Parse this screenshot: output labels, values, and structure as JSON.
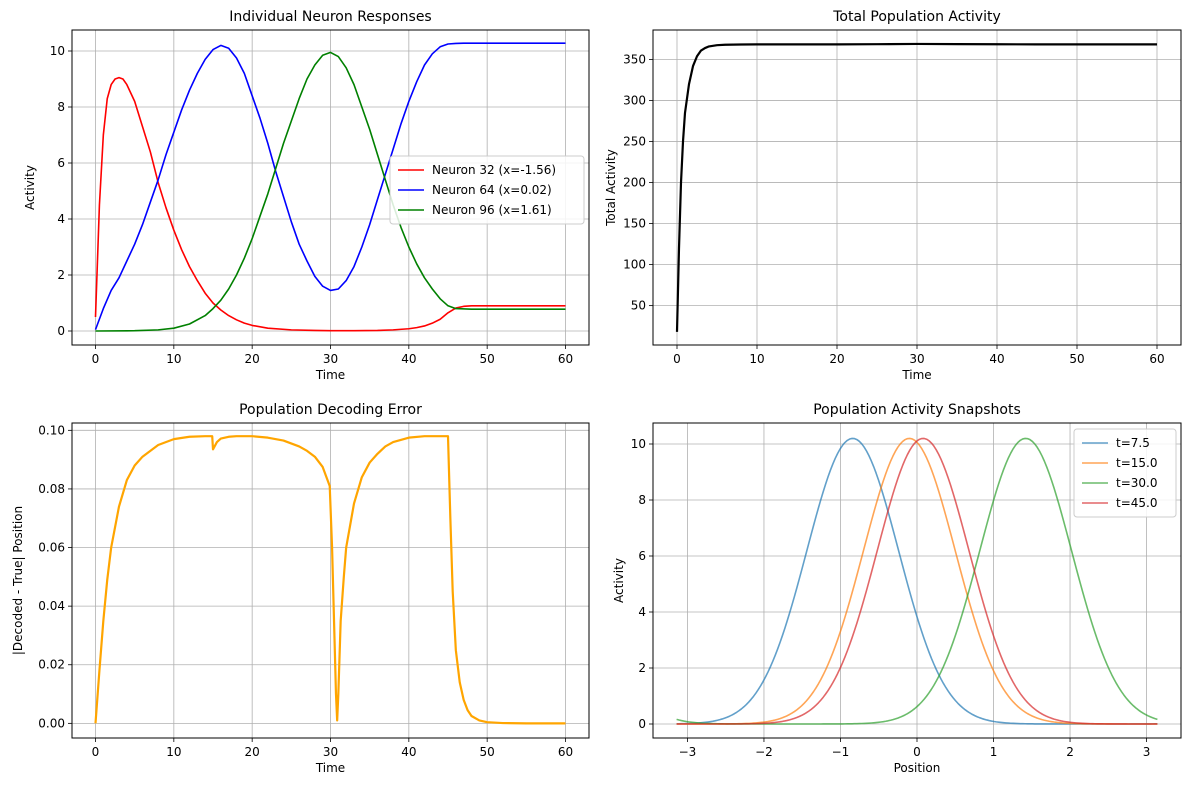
{
  "chart_data": [
    {
      "type": "line",
      "title": "Individual Neuron Responses",
      "xlabel": "Time",
      "ylabel": "Activity",
      "xlim": [
        -3,
        63
      ],
      "ylim": [
        -0.5,
        10.75
      ],
      "xticks": [
        0,
        10,
        20,
        30,
        40,
        50,
        60
      ],
      "yticks": [
        0,
        2,
        4,
        6,
        8,
        10
      ],
      "grid": true,
      "legend": "center-right",
      "series": [
        {
          "name": "Neuron 32 (x=-1.56)",
          "color": "#ff0000",
          "x": [
            0,
            0.5,
            1,
            1.5,
            2,
            2.5,
            3,
            3.5,
            4,
            5,
            6,
            7,
            8,
            9,
            10,
            11,
            12,
            13,
            14,
            15,
            16,
            17,
            18,
            19,
            20,
            22,
            25,
            28,
            30,
            33,
            36,
            38,
            40,
            41,
            42,
            43,
            44,
            45,
            46,
            47,
            48,
            50,
            55,
            60
          ],
          "y": [
            0.5,
            4.5,
            7.0,
            8.3,
            8.8,
            9.0,
            9.05,
            9.0,
            8.8,
            8.2,
            7.3,
            6.4,
            5.3,
            4.4,
            3.6,
            2.9,
            2.3,
            1.8,
            1.35,
            1.0,
            0.75,
            0.55,
            0.4,
            0.28,
            0.2,
            0.1,
            0.04,
            0.02,
            0.01,
            0.01,
            0.02,
            0.04,
            0.08,
            0.12,
            0.18,
            0.28,
            0.42,
            0.65,
            0.82,
            0.88,
            0.9,
            0.9,
            0.9,
            0.9
          ]
        },
        {
          "name": "Neuron 64 (x=0.02)",
          "color": "#0000ff",
          "x": [
            0,
            1,
            2,
            3,
            4,
            5,
            6,
            7,
            8,
            9,
            10,
            11,
            12,
            13,
            14,
            15,
            16,
            17,
            18,
            19,
            20,
            21,
            22,
            23,
            24,
            25,
            26,
            27,
            28,
            29,
            30,
            31,
            32,
            33,
            34,
            35,
            36,
            37,
            38,
            39,
            40,
            41,
            42,
            43,
            44,
            45,
            46,
            47,
            48,
            50,
            55,
            60
          ],
          "y": [
            0.05,
            0.8,
            1.45,
            1.9,
            2.5,
            3.1,
            3.8,
            4.6,
            5.4,
            6.3,
            7.1,
            7.9,
            8.6,
            9.2,
            9.7,
            10.05,
            10.2,
            10.1,
            9.75,
            9.2,
            8.4,
            7.6,
            6.7,
            5.7,
            4.8,
            3.9,
            3.1,
            2.5,
            1.95,
            1.6,
            1.45,
            1.5,
            1.8,
            2.3,
            3.0,
            3.8,
            4.7,
            5.6,
            6.5,
            7.4,
            8.2,
            8.9,
            9.5,
            9.9,
            10.15,
            10.25,
            10.27,
            10.28,
            10.28,
            10.28,
            10.28,
            10.28
          ]
        },
        {
          "name": "Neuron 96 (x=1.61)",
          "color": "#008000",
          "x": [
            0,
            5,
            8,
            10,
            12,
            14,
            15,
            16,
            17,
            18,
            19,
            20,
            21,
            22,
            23,
            24,
            25,
            26,
            27,
            28,
            29,
            30,
            31,
            32,
            33,
            34,
            35,
            36,
            37,
            38,
            39,
            40,
            41,
            42,
            43,
            44,
            45,
            46,
            48,
            50,
            55,
            60
          ],
          "y": [
            0,
            0.01,
            0.04,
            0.1,
            0.25,
            0.55,
            0.8,
            1.1,
            1.5,
            2.0,
            2.6,
            3.3,
            4.1,
            4.9,
            5.8,
            6.7,
            7.5,
            8.3,
            9.0,
            9.5,
            9.85,
            9.95,
            9.8,
            9.4,
            8.8,
            8.0,
            7.2,
            6.3,
            5.4,
            4.5,
            3.7,
            3.0,
            2.4,
            1.9,
            1.5,
            1.15,
            0.9,
            0.8,
            0.78,
            0.78,
            0.78,
            0.78
          ]
        }
      ]
    },
    {
      "type": "line",
      "title": "Total Population Activity",
      "xlabel": "Time",
      "ylabel": "Total Activity",
      "xlim": [
        -3,
        63
      ],
      "ylim": [
        2,
        386
      ],
      "xticks": [
        0,
        10,
        20,
        30,
        40,
        50,
        60
      ],
      "yticks": [
        50,
        100,
        150,
        200,
        250,
        300,
        350
      ],
      "grid": true,
      "series": [
        {
          "color": "#000000",
          "x": [
            0,
            0.25,
            0.5,
            0.75,
            1,
            1.5,
            2,
            2.5,
            3,
            3.5,
            4,
            5,
            6,
            8,
            10,
            15,
            20,
            25,
            30,
            35,
            40,
            45,
            50,
            55,
            60
          ],
          "y": [
            18,
            120,
            200,
            250,
            285,
            320,
            342,
            354,
            361,
            364,
            366,
            367.5,
            368,
            368.3,
            368.5,
            368.5,
            368.5,
            368.7,
            369,
            368.8,
            368.6,
            368.5,
            368.5,
            368.5,
            368.5
          ]
        }
      ]
    },
    {
      "type": "line",
      "title": "Population Decoding Error",
      "xlabel": "Time",
      "ylabel": "|Decoded - True| Position",
      "xlim": [
        -3,
        63
      ],
      "ylim": [
        -0.005,
        0.1025
      ],
      "xticks": [
        0,
        10,
        20,
        30,
        40,
        50,
        60
      ],
      "yticks": [
        0.0,
        0.02,
        0.04,
        0.06,
        0.08,
        0.1
      ],
      "ytick_labels": [
        "0.00",
        "0.02",
        "0.04",
        "0.06",
        "0.08",
        "0.10"
      ],
      "grid": true,
      "series": [
        {
          "color": "#ffa500",
          "x": [
            0,
            0.5,
            1,
            1.5,
            2,
            3,
            4,
            5,
            6,
            7,
            8,
            10,
            12,
            14,
            14.9,
            15.0,
            15.5,
            16,
            17,
            18,
            20,
            22,
            24,
            26,
            27,
            28,
            29,
            29.9,
            30.2,
            30.5,
            30.7,
            30.85,
            31,
            31.3,
            31.7,
            32,
            33,
            34,
            35,
            36,
            37,
            38,
            40,
            42,
            44,
            45,
            45.3,
            45.6,
            46,
            46.5,
            47,
            47.5,
            48,
            49,
            50,
            52,
            55,
            60
          ],
          "y": [
            0,
            0.018,
            0.035,
            0.049,
            0.06,
            0.074,
            0.083,
            0.088,
            0.091,
            0.093,
            0.095,
            0.097,
            0.0978,
            0.098,
            0.098,
            0.0935,
            0.096,
            0.0972,
            0.0978,
            0.098,
            0.098,
            0.0975,
            0.0965,
            0.0945,
            0.093,
            0.091,
            0.0875,
            0.081,
            0.06,
            0.03,
            0.01,
            0.001,
            0.01,
            0.035,
            0.05,
            0.06,
            0.075,
            0.084,
            0.089,
            0.092,
            0.0945,
            0.096,
            0.0975,
            0.098,
            0.098,
            0.098,
            0.07,
            0.045,
            0.025,
            0.014,
            0.008,
            0.0045,
            0.0025,
            0.001,
            0.0004,
            0.0001,
            0,
            0
          ]
        }
      ]
    },
    {
      "type": "line",
      "title": "Population Activity Snapshots",
      "xlabel": "Position",
      "ylabel": "Activity",
      "xlim": [
        -3.45,
        3.45
      ],
      "ylim": [
        -0.5,
        10.75
      ],
      "xticks": [
        -3,
        -2,
        -1,
        0,
        1,
        2,
        3
      ],
      "xtick_labels": [
        "−3",
        "−2",
        "−1",
        "0",
        "1",
        "2",
        "3"
      ],
      "yticks": [
        0,
        2,
        4,
        6,
        8,
        10
      ],
      "grid": true,
      "legend": "top-right",
      "series": [
        {
          "name": "t=7.5",
          "color": "#1f77b4",
          "gaussian": {
            "center": -0.84,
            "amp": 10.2,
            "sigma": 0.6,
            "base": 0.0
          }
        },
        {
          "name": "t=15.0",
          "color": "#ff7f0e",
          "gaussian": {
            "center": -0.1,
            "amp": 10.2,
            "sigma": 0.6,
            "base": 0.0
          }
        },
        {
          "name": "t=30.0",
          "color": "#2ca02c",
          "gaussian": {
            "center": 1.42,
            "amp": 10.2,
            "sigma": 0.6,
            "base": 0.0
          }
        },
        {
          "name": "t=45.0",
          "color": "#d62728",
          "gaussian": {
            "center": 0.08,
            "amp": 10.2,
            "sigma": 0.6,
            "base": 0.0
          }
        }
      ]
    }
  ]
}
